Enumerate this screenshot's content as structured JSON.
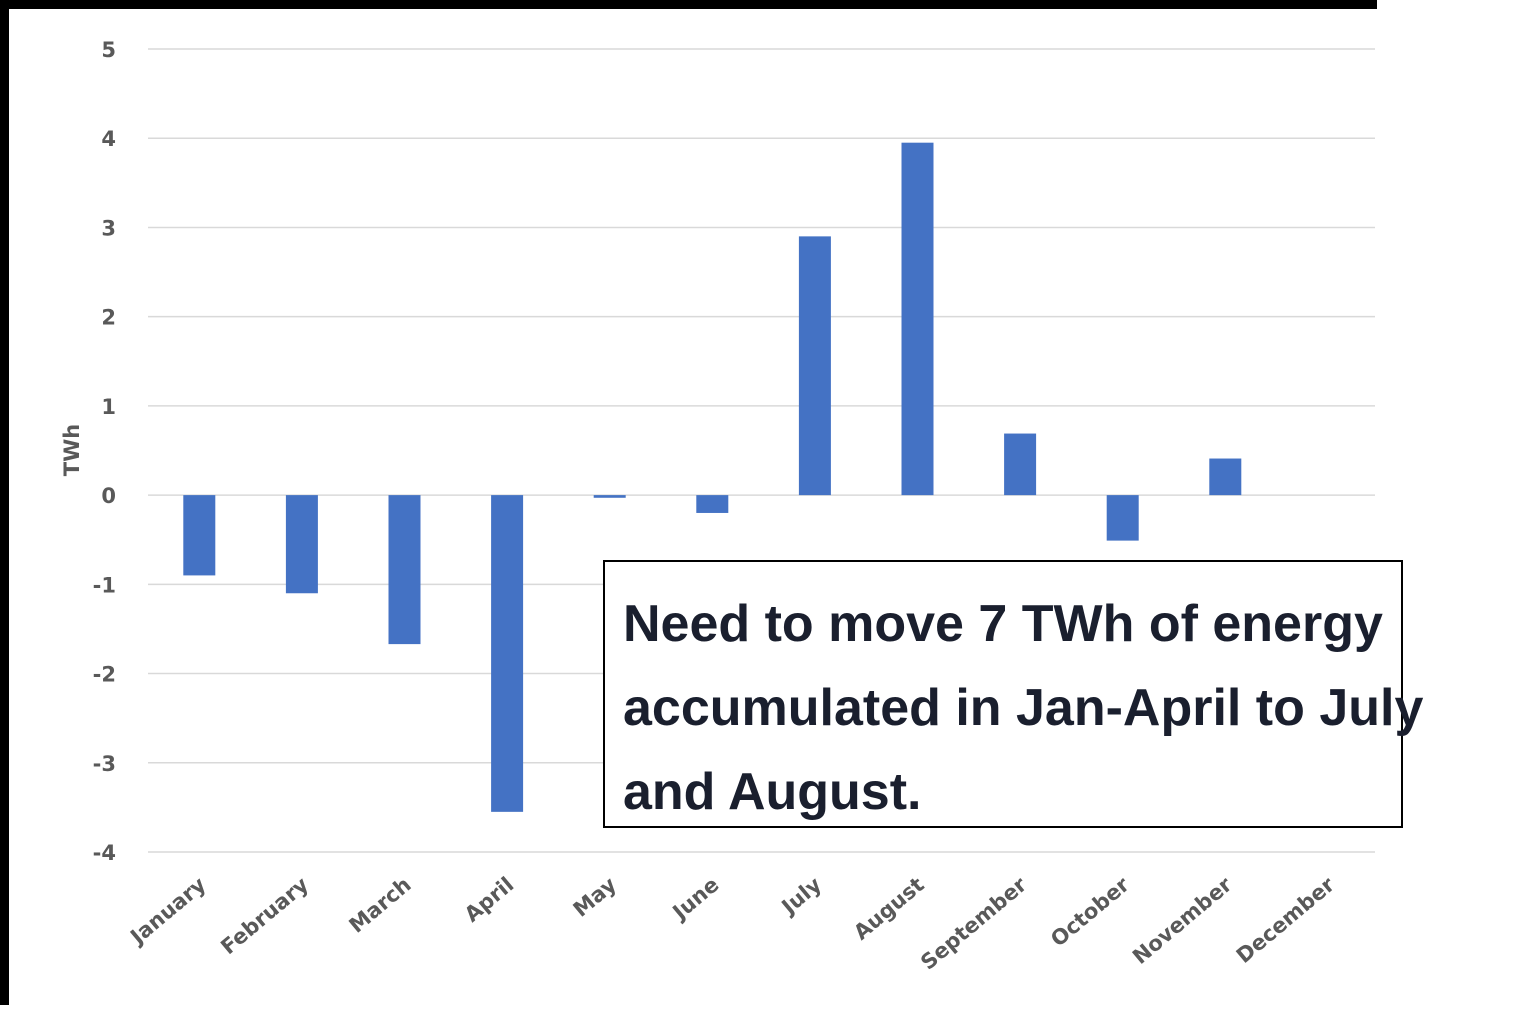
{
  "chart_data": {
    "type": "bar",
    "ylabel": "TWh",
    "ylim": [
      -4,
      5
    ],
    "yticks": [
      5,
      4,
      3,
      2,
      1,
      0,
      -1,
      -2,
      -3,
      -4
    ],
    "grid": true,
    "legend": "none",
    "categories": [
      "January",
      "February",
      "March",
      "April",
      "May",
      "June",
      "July",
      "August",
      "September",
      "October",
      "November",
      "December"
    ],
    "series": [
      {
        "values": [
          -0.9,
          -1.1,
          -1.67,
          -3.55,
          -0.03,
          -0.2,
          2.9,
          3.95,
          0.69,
          -0.51,
          0.41,
          0
        ]
      }
    ],
    "bar_color": "#4472C4",
    "annotation": "Need to move 7 TWh of energy accumulated in Jan-April to July and August."
  }
}
